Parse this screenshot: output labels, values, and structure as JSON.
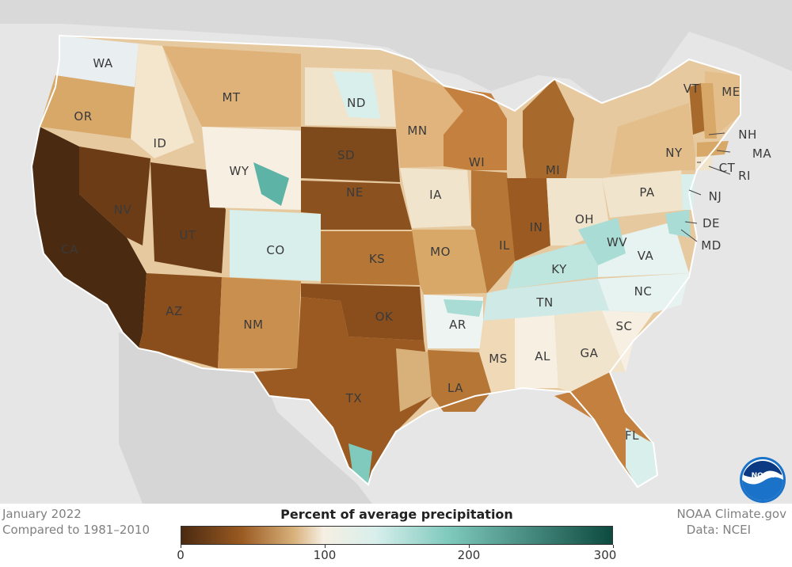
{
  "map": {
    "state_labels": [
      {
        "code": "WA"
      },
      {
        "code": "OR"
      },
      {
        "code": "CA"
      },
      {
        "code": "ID"
      },
      {
        "code": "NV"
      },
      {
        "code": "MT"
      },
      {
        "code": "WY"
      },
      {
        "code": "UT"
      },
      {
        "code": "AZ"
      },
      {
        "code": "CO"
      },
      {
        "code": "NM"
      },
      {
        "code": "ND"
      },
      {
        "code": "SD"
      },
      {
        "code": "NE"
      },
      {
        "code": "KS"
      },
      {
        "code": "OK"
      },
      {
        "code": "TX"
      },
      {
        "code": "MN"
      },
      {
        "code": "IA"
      },
      {
        "code": "MO"
      },
      {
        "code": "AR"
      },
      {
        "code": "LA"
      },
      {
        "code": "WI"
      },
      {
        "code": "IL"
      },
      {
        "code": "MI"
      },
      {
        "code": "IN"
      },
      {
        "code": "OH"
      },
      {
        "code": "KY"
      },
      {
        "code": "TN"
      },
      {
        "code": "MS"
      },
      {
        "code": "AL"
      },
      {
        "code": "GA"
      },
      {
        "code": "FL"
      },
      {
        "code": "SC"
      },
      {
        "code": "NC"
      },
      {
        "code": "VA"
      },
      {
        "code": "WV"
      },
      {
        "code": "PA"
      },
      {
        "code": "NY"
      },
      {
        "code": "VT"
      },
      {
        "code": "ME"
      },
      {
        "code": "NH"
      },
      {
        "code": "MA"
      },
      {
        "code": "CT"
      },
      {
        "code": "RI"
      },
      {
        "code": "NJ"
      },
      {
        "code": "DE"
      },
      {
        "code": "MD"
      }
    ]
  },
  "info": {
    "period": "January 2022",
    "baseline": "Compared to 1981–2010",
    "credit": "NOAA Climate.gov",
    "data_source": "Data: NCEI"
  },
  "legend": {
    "title": "Percent of average precipitation",
    "ticks": [
      "0",
      "100",
      "200",
      "300"
    ],
    "colors": {
      "very_dry": "#4a2a10",
      "dry": "#9a5a22",
      "below": "#d8b07a",
      "near": "#f6efe2",
      "above": "#d8efec",
      "wet": "#7fc9bd",
      "very_wet": "#0d4a40"
    }
  },
  "logo": {
    "text": "NOAA"
  }
}
